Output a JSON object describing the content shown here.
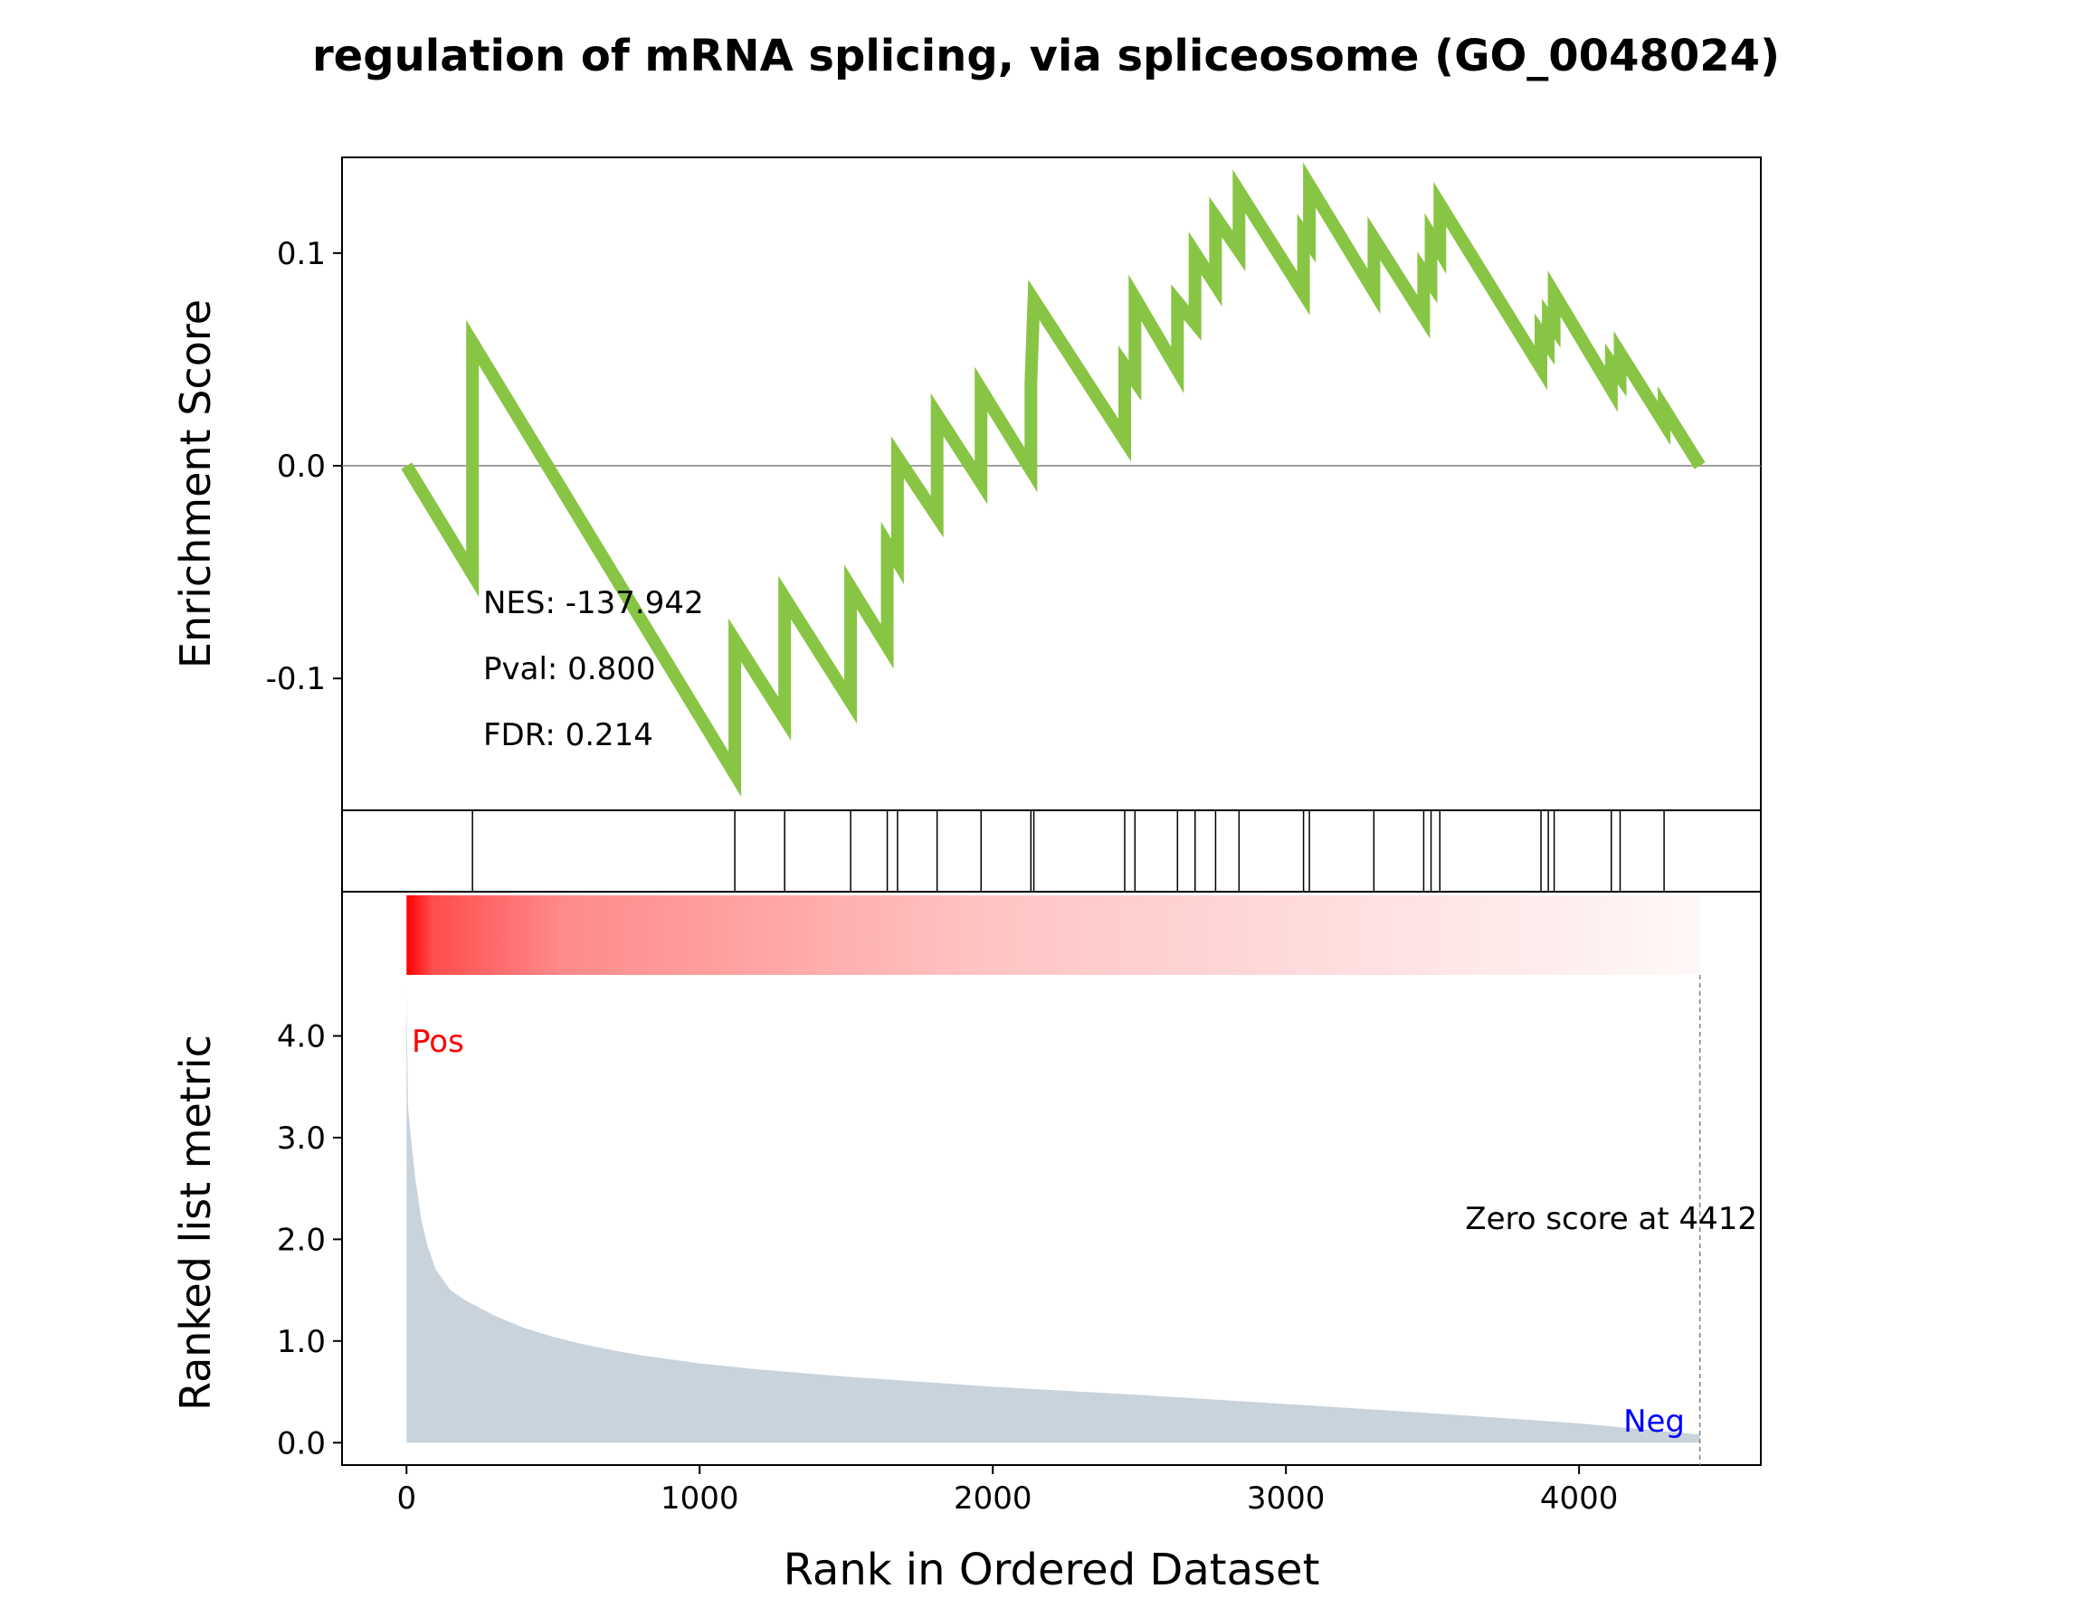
{
  "chart_data": {
    "type": "line",
    "title": "regulation of mRNA splicing, via spliceosome (GO_0048024)",
    "colors": {
      "es_line": "#88c544",
      "hits": "#000000",
      "ranked_fill": "#c9d3dc",
      "heat_high": "#ff0000",
      "heat_low": "#ffffff",
      "pos_label": "#ff0000",
      "neg_label": "#0000ff",
      "zero_line": "#808080"
    },
    "enrichment_panel": {
      "ylabel": "Enrichment Score",
      "ylim": [
        -0.162,
        0.145
      ],
      "yticks": [
        0.1,
        0.0,
        -0.1
      ],
      "ytick_labels": [
        "0.1",
        "0.0",
        "-0.1"
      ],
      "stats": {
        "nes": "NES: -137.942",
        "pval": "Pval: 0.800",
        "fdr": "FDR: 0.214"
      },
      "hits": [
        225,
        1120,
        1290,
        1515,
        1640,
        1675,
        1810,
        1960,
        2130,
        2140,
        2450,
        2485,
        2630,
        2690,
        2760,
        2840,
        3060,
        3080,
        3300,
        3470,
        3495,
        3525,
        3870,
        3895,
        3915,
        4110,
        4140,
        4290
      ],
      "es_points": [
        [
          0,
          0.0
        ],
        [
          225,
          -0.051
        ],
        [
          225,
          0.058
        ],
        [
          1120,
          -0.145
        ],
        [
          1120,
          -0.082
        ],
        [
          1290,
          -0.119
        ],
        [
          1290,
          -0.062
        ],
        [
          1515,
          -0.111
        ],
        [
          1515,
          -0.057
        ],
        [
          1640,
          -0.085
        ],
        [
          1640,
          -0.037
        ],
        [
          1675,
          -0.045
        ],
        [
          1675,
          0.004
        ],
        [
          1810,
          -0.024
        ],
        [
          1810,
          0.024
        ],
        [
          1960,
          -0.008
        ],
        [
          1960,
          0.036
        ],
        [
          2130,
          -0.002
        ],
        [
          2130,
          0.039
        ],
        [
          2140,
          0.078
        ],
        [
          2450,
          0.012
        ],
        [
          2450,
          0.047
        ],
        [
          2485,
          0.04
        ],
        [
          2485,
          0.079
        ],
        [
          2630,
          0.045
        ],
        [
          2630,
          0.077
        ],
        [
          2690,
          0.067
        ],
        [
          2690,
          0.1
        ],
        [
          2760,
          0.085
        ],
        [
          2760,
          0.117
        ],
        [
          2840,
          0.101
        ],
        [
          2840,
          0.129
        ],
        [
          3060,
          0.081
        ],
        [
          3060,
          0.109
        ],
        [
          3080,
          0.105
        ],
        [
          3080,
          0.132
        ],
        [
          3300,
          0.082
        ],
        [
          3300,
          0.107
        ],
        [
          3470,
          0.07
        ],
        [
          3470,
          0.091
        ],
        [
          3495,
          0.086
        ],
        [
          3495,
          0.108
        ],
        [
          3525,
          0.101
        ],
        [
          3525,
          0.123
        ],
        [
          3870,
          0.046
        ],
        [
          3870,
          0.062
        ],
        [
          3895,
          0.057
        ],
        [
          3895,
          0.069
        ],
        [
          3915,
          0.065
        ],
        [
          3915,
          0.081
        ],
        [
          4110,
          0.036
        ],
        [
          4110,
          0.048
        ],
        [
          4140,
          0.042
        ],
        [
          4140,
          0.053
        ],
        [
          4290,
          0.02
        ],
        [
          4290,
          0.027
        ],
        [
          4412,
          0.0
        ]
      ]
    },
    "ranked_panel": {
      "ylabel": "Ranked list metric",
      "xlabel": "Rank in Ordered Dataset",
      "xlim": [
        -220,
        4620
      ],
      "ylim": [
        -0.22,
        4.6
      ],
      "xticks": [
        0,
        1000,
        2000,
        3000,
        4000
      ],
      "xtick_labels": [
        "0",
        "1000",
        "2000",
        "3000",
        "4000"
      ],
      "yticks": [
        0.0,
        1.0,
        2.0,
        3.0,
        4.0
      ],
      "ytick_labels": [
        "0.0",
        "1.0",
        "2.0",
        "3.0",
        "4.0"
      ],
      "pos_label": "Pos",
      "neg_label": "Neg",
      "zero_score_rank": 4412,
      "zero_score_label": "Zero score at 4412",
      "metric_points": [
        [
          0,
          4.45
        ],
        [
          5,
          3.3
        ],
        [
          15,
          3.0
        ],
        [
          30,
          2.6
        ],
        [
          50,
          2.2
        ],
        [
          70,
          1.95
        ],
        [
          100,
          1.7
        ],
        [
          150,
          1.5
        ],
        [
          200,
          1.4
        ],
        [
          300,
          1.25
        ],
        [
          400,
          1.13
        ],
        [
          500,
          1.04
        ],
        [
          600,
          0.97
        ],
        [
          700,
          0.91
        ],
        [
          800,
          0.86
        ],
        [
          1000,
          0.78
        ],
        [
          1200,
          0.72
        ],
        [
          1500,
          0.65
        ],
        [
          2000,
          0.55
        ],
        [
          2500,
          0.47
        ],
        [
          3000,
          0.38
        ],
        [
          3500,
          0.29
        ],
        [
          4000,
          0.19
        ],
        [
          4412,
          0.08
        ]
      ]
    }
  }
}
